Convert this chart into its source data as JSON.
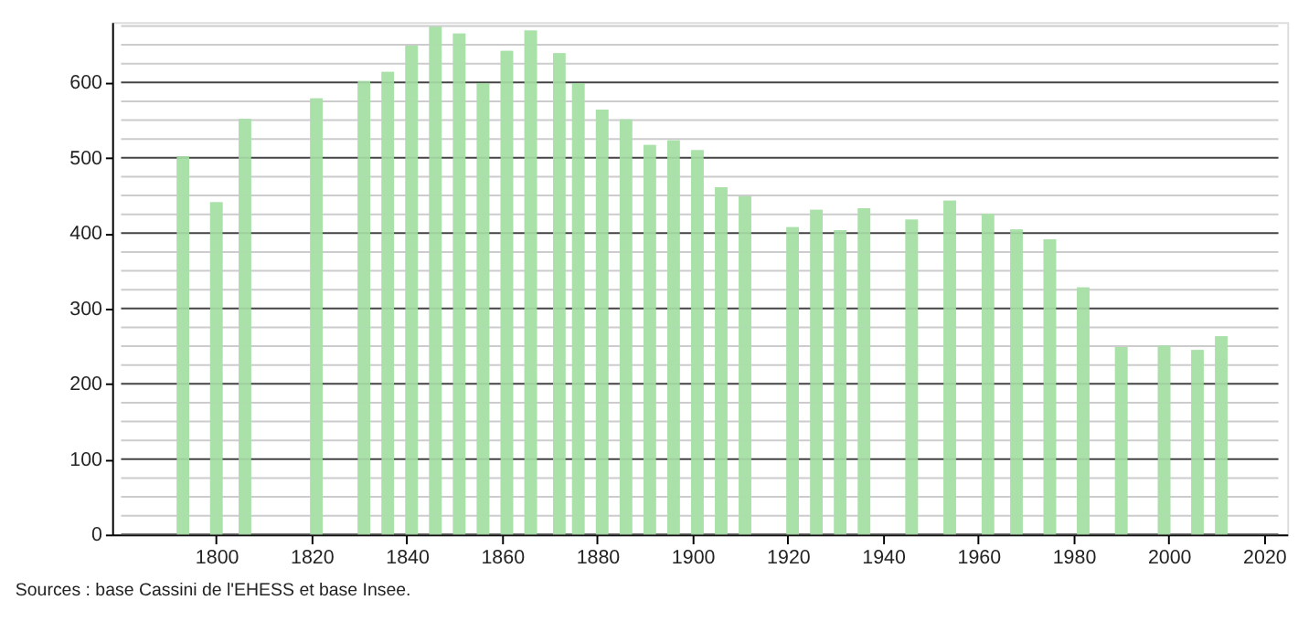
{
  "chart_data": {
    "type": "bar",
    "x": [
      1793,
      1800,
      1806,
      1821,
      1831,
      1836,
      1841,
      1846,
      1851,
      1856,
      1861,
      1866,
      1872,
      1876,
      1881,
      1886,
      1891,
      1896,
      1901,
      1906,
      1911,
      1921,
      1926,
      1931,
      1936,
      1946,
      1954,
      1962,
      1968,
      1975,
      1982,
      1990,
      1999,
      2006,
      2011
    ],
    "values": [
      502,
      441,
      552,
      579,
      602,
      614,
      649,
      674,
      665,
      599,
      642,
      669,
      639,
      599,
      564,
      551,
      517,
      523,
      510,
      461,
      449,
      408,
      431,
      404,
      433,
      418,
      443,
      426,
      405,
      392,
      328,
      249,
      251,
      245,
      263
    ],
    "color": "#a8e0a8",
    "xlim": [
      1780,
      2023
    ],
    "xticks": [
      1800,
      1820,
      1840,
      1860,
      1880,
      1900,
      1920,
      1940,
      1960,
      1980,
      2000,
      2020
    ],
    "ylim": [
      0,
      680
    ],
    "yticks": [
      0,
      {
        "value": 25,
        "label": null
      },
      {
        "value": 50,
        "label": null
      },
      {
        "value": 75,
        "label": null
      },
      100,
      {
        "value": 125,
        "label": null
      },
      {
        "value": 150,
        "label": null
      },
      {
        "value": 175,
        "label": null
      },
      200,
      {
        "value": 225,
        "label": null
      },
      {
        "value": 250,
        "label": null
      },
      {
        "value": 275,
        "label": null
      },
      300,
      {
        "value": 325,
        "label": null
      },
      {
        "value": 350,
        "label": null
      },
      {
        "value": 375,
        "label": null
      },
      400,
      {
        "value": 425,
        "label": null
      },
      {
        "value": 450,
        "label": null
      },
      {
        "value": 475,
        "label": null
      },
      500,
      {
        "value": 525,
        "label": null
      },
      {
        "value": 550,
        "label": null
      },
      {
        "value": 575,
        "label": null
      },
      600,
      {
        "value": 625,
        "label": null
      },
      {
        "value": 650,
        "label": null
      },
      {
        "value": 675,
        "label": null
      }
    ],
    "grid": "y",
    "annotations": [
      "Sources : base Cassini de l'EHESS et base Insee."
    ]
  }
}
